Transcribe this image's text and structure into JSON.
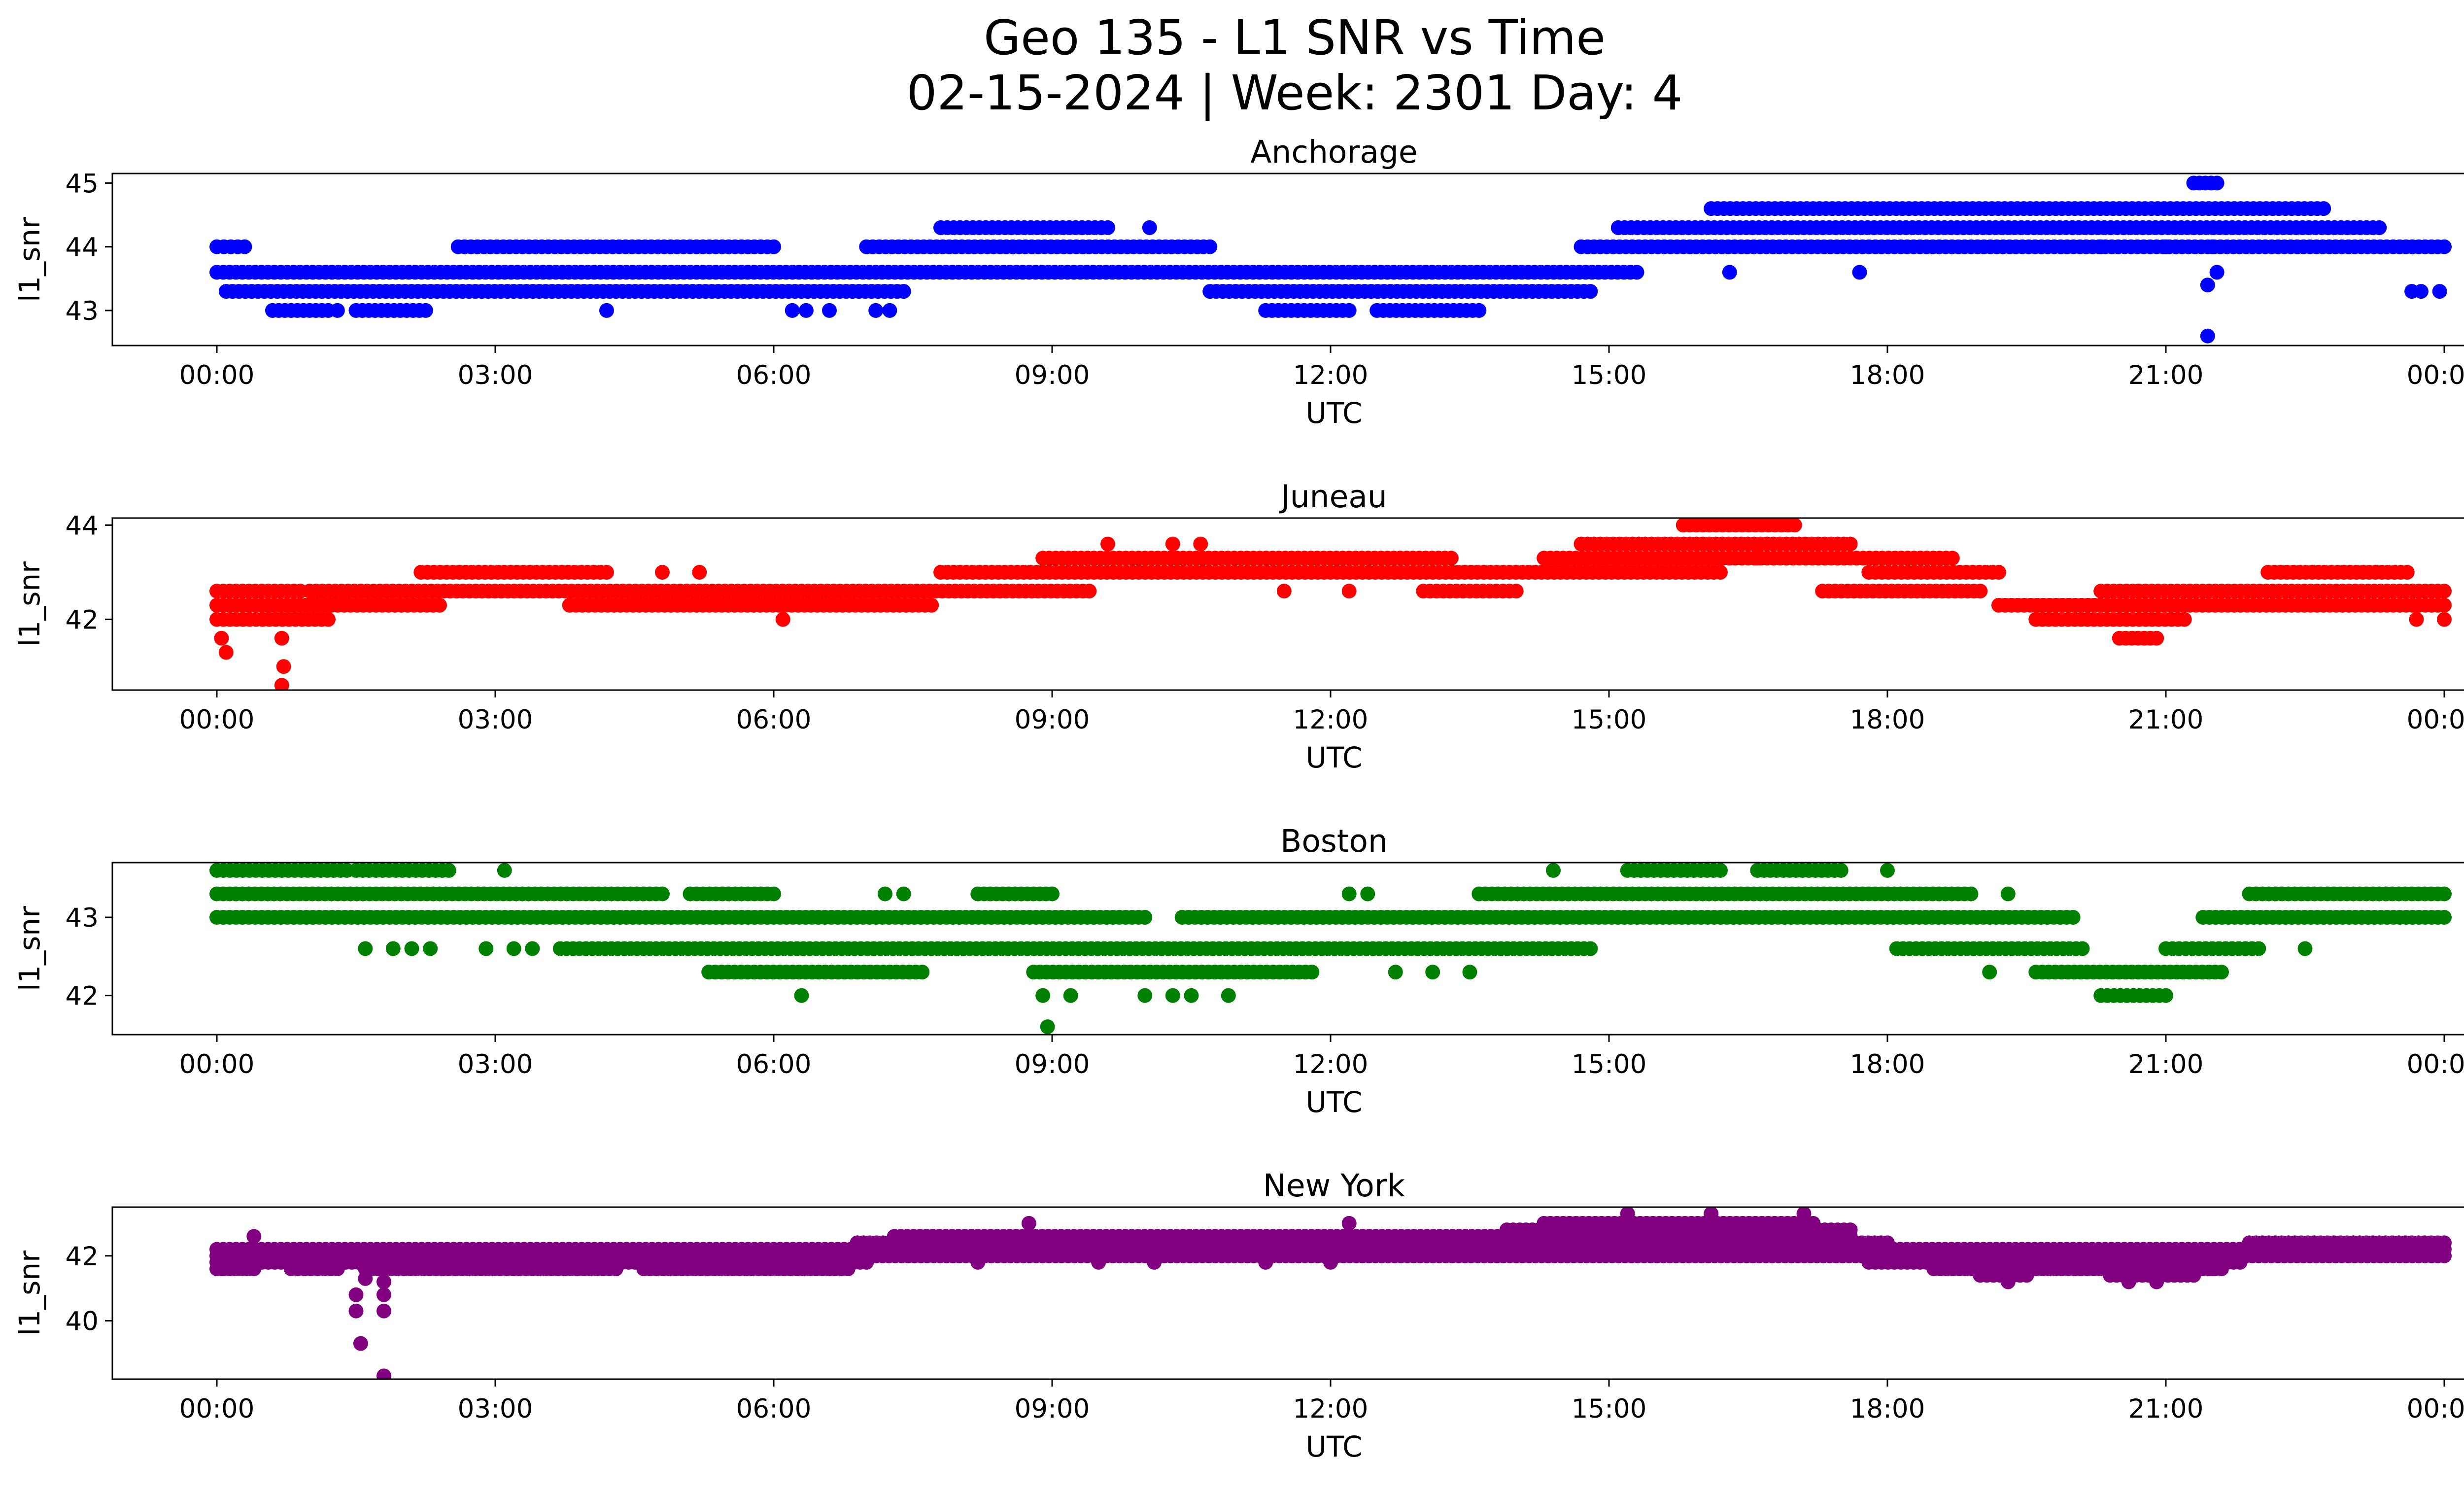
{
  "figure": {
    "title_line1": "Geo 135 - L1 SNR vs Time",
    "title_line2": "02-15-2024 | Week: 2301 Day: 4"
  },
  "chart_data": [
    {
      "type": "scatter",
      "title": "Anchorage",
      "xlabel": "UTC",
      "ylabel": "l1_snr",
      "color": "#0000ff",
      "x_range_hours": [
        0,
        24
      ],
      "xticks": [
        "00:00",
        "03:00",
        "06:00",
        "09:00",
        "12:00",
        "15:00",
        "18:00",
        "21:00",
        "00:00"
      ],
      "ylim": [
        42.45,
        45.15
      ],
      "yticks": [
        43,
        44,
        45
      ],
      "grid": false,
      "levels": [
        {
          "y": 43.6,
          "segments": [
            [
              0.0,
              15.3
            ]
          ]
        },
        {
          "y": 43.3,
          "segments": [
            [
              0.1,
              7.4
            ],
            [
              10.7,
              14.8
            ]
          ]
        },
        {
          "y": 43.0,
          "segments": [
            [
              0.6,
              1.2
            ],
            [
              1.5,
              2.25
            ],
            [
              11.3,
              12.2
            ],
            [
              12.5,
              13.6
            ]
          ]
        },
        {
          "y": 44.0,
          "segments": [
            [
              0.0,
              0.3
            ],
            [
              2.6,
              6.0
            ],
            [
              7.0,
              10.7
            ],
            [
              14.7,
              24.0
            ]
          ]
        },
        {
          "y": 44.3,
          "segments": [
            [
              7.8,
              9.6
            ],
            [
              15.1,
              23.3
            ]
          ]
        },
        {
          "y": 44.6,
          "segments": [
            [
              16.1,
              22.7
            ]
          ]
        },
        {
          "y": 45.0,
          "segments": [
            [
              21.3,
              21.55
            ]
          ]
        }
      ],
      "points": [
        {
          "x": 1.3,
          "y": 43.0
        },
        {
          "x": 4.2,
          "y": 43.0
        },
        {
          "x": 6.2,
          "y": 43.0
        },
        {
          "x": 6.35,
          "y": 43.0
        },
        {
          "x": 6.6,
          "y": 43.0
        },
        {
          "x": 7.1,
          "y": 43.0
        },
        {
          "x": 7.25,
          "y": 43.0
        },
        {
          "x": 10.05,
          "y": 44.3
        },
        {
          "x": 16.3,
          "y": 43.6
        },
        {
          "x": 17.7,
          "y": 43.6
        },
        {
          "x": 21.45,
          "y": 42.6
        },
        {
          "x": 21.45,
          "y": 43.4
        },
        {
          "x": 21.55,
          "y": 43.6
        },
        {
          "x": 23.65,
          "y": 43.3
        },
        {
          "x": 23.75,
          "y": 43.3
        },
        {
          "x": 23.95,
          "y": 43.3
        },
        {
          "x": 21.5,
          "y": 44.0
        },
        {
          "x": 21.0,
          "y": 44.0
        },
        {
          "x": 20.3,
          "y": 44.0
        }
      ]
    },
    {
      "type": "scatter",
      "title": "Juneau",
      "xlabel": "UTC",
      "ylabel": "l1_snr",
      "color": "#ff0000",
      "x_range_hours": [
        0,
        24
      ],
      "xticks": [
        "00:00",
        "03:00",
        "06:00",
        "09:00",
        "12:00",
        "15:00",
        "18:00",
        "21:00",
        "00:00"
      ],
      "ylim": [
        40.5,
        44.15
      ],
      "yticks": [
        42,
        44
      ],
      "grid": false,
      "levels": [
        {
          "y": 42.6,
          "segments": [
            [
              0.0,
              0.9
            ],
            [
              1.0,
              9.4
            ],
            [
              13.0,
              14.0
            ],
            [
              17.3,
              19.0
            ],
            [
              20.3,
              24.0
            ]
          ]
        },
        {
          "y": 42.3,
          "segments": [
            [
              0.0,
              2.4
            ],
            [
              3.8,
              7.7
            ],
            [
              19.2,
              24.0
            ]
          ]
        },
        {
          "y": 42.0,
          "segments": [
            [
              0.0,
              1.2
            ],
            [
              19.6,
              21.2
            ]
          ]
        },
        {
          "y": 43.0,
          "segments": [
            [
              2.2,
              4.2
            ],
            [
              7.8,
              16.2
            ],
            [
              17.8,
              19.2
            ],
            [
              22.1,
              23.6
            ]
          ]
        },
        {
          "y": 43.3,
          "segments": [
            [
              8.9,
              13.3
            ],
            [
              14.3,
              18.7
            ]
          ]
        },
        {
          "y": 43.6,
          "segments": [
            [
              14.7,
              17.6
            ]
          ]
        },
        {
          "y": 44.0,
          "segments": [
            [
              15.8,
              17.0
            ]
          ]
        },
        {
          "y": 41.6,
          "segments": [
            [
              20.5,
              20.9
            ]
          ]
        }
      ],
      "points": [
        {
          "x": 0.05,
          "y": 41.6
        },
        {
          "x": 0.1,
          "y": 41.3
        },
        {
          "x": 0.7,
          "y": 41.6
        },
        {
          "x": 0.72,
          "y": 41.0
        },
        {
          "x": 0.7,
          "y": 40.6
        },
        {
          "x": 4.8,
          "y": 43.0
        },
        {
          "x": 5.2,
          "y": 43.0
        },
        {
          "x": 6.1,
          "y": 42.0
        },
        {
          "x": 9.6,
          "y": 43.6
        },
        {
          "x": 10.3,
          "y": 43.6
        },
        {
          "x": 10.6,
          "y": 43.6
        },
        {
          "x": 11.5,
          "y": 42.6
        },
        {
          "x": 12.2,
          "y": 42.6
        },
        {
          "x": 20.7,
          "y": 42.6
        },
        {
          "x": 23.7,
          "y": 42.0
        },
        {
          "x": 24.0,
          "y": 42.0
        },
        {
          "x": 16.6,
          "y": 43.3
        },
        {
          "x": 16.3,
          "y": 43.3
        }
      ]
    },
    {
      "type": "scatter",
      "title": "Boston",
      "xlabel": "UTC",
      "ylabel": "l1_snr",
      "color": "#008000",
      "x_range_hours": [
        0,
        24
      ],
      "xticks": [
        "00:00",
        "03:00",
        "06:00",
        "09:00",
        "12:00",
        "15:00",
        "18:00",
        "21:00",
        "00:00"
      ],
      "ylim": [
        41.5,
        43.7
      ],
      "yticks": [
        42,
        43
      ],
      "grid": false,
      "levels": [
        {
          "y": 43.0,
          "segments": [
            [
              0.0,
              10.0
            ],
            [
              10.4,
              20.0
            ],
            [
              21.4,
              24.0
            ]
          ]
        },
        {
          "y": 43.3,
          "segments": [
            [
              0.0,
              4.8
            ],
            [
              5.1,
              6.0
            ],
            [
              8.2,
              9.0
            ],
            [
              13.6,
              18.9
            ],
            [
              21.9,
              24.0
            ]
          ]
        },
        {
          "y": 43.6,
          "segments": [
            [
              0.0,
              1.4
            ],
            [
              1.5,
              2.5
            ],
            [
              15.2,
              16.2
            ],
            [
              16.6,
              17.5
            ]
          ]
        },
        {
          "y": 42.6,
          "segments": [
            [
              3.7,
              14.8
            ],
            [
              18.1,
              20.1
            ],
            [
              21.0,
              22.0
            ]
          ]
        },
        {
          "y": 42.3,
          "segments": [
            [
              5.3,
              7.6
            ],
            [
              8.8,
              11.8
            ],
            [
              19.6,
              21.6
            ]
          ]
        },
        {
          "y": 42.0,
          "segments": [
            [
              20.3,
              21.0
            ]
          ]
        }
      ],
      "points": [
        {
          "x": 1.6,
          "y": 42.6
        },
        {
          "x": 1.9,
          "y": 42.6
        },
        {
          "x": 2.1,
          "y": 42.6
        },
        {
          "x": 2.3,
          "y": 42.6
        },
        {
          "x": 2.9,
          "y": 42.6
        },
        {
          "x": 3.2,
          "y": 42.6
        },
        {
          "x": 3.4,
          "y": 42.6
        },
        {
          "x": 3.1,
          "y": 43.6
        },
        {
          "x": 6.3,
          "y": 42.0
        },
        {
          "x": 8.95,
          "y": 41.6
        },
        {
          "x": 8.9,
          "y": 42.0
        },
        {
          "x": 9.2,
          "y": 42.0
        },
        {
          "x": 10.0,
          "y": 42.0
        },
        {
          "x": 10.3,
          "y": 42.0
        },
        {
          "x": 10.5,
          "y": 42.0
        },
        {
          "x": 10.9,
          "y": 42.0
        },
        {
          "x": 14.4,
          "y": 43.6
        },
        {
          "x": 18.0,
          "y": 43.6
        },
        {
          "x": 19.3,
          "y": 43.3
        },
        {
          "x": 19.1,
          "y": 42.3
        },
        {
          "x": 22.5,
          "y": 42.6
        },
        {
          "x": 12.2,
          "y": 43.3
        },
        {
          "x": 12.4,
          "y": 43.3
        },
        {
          "x": 7.2,
          "y": 43.3
        },
        {
          "x": 7.4,
          "y": 43.3
        },
        {
          "x": 12.7,
          "y": 42.3
        },
        {
          "x": 13.1,
          "y": 42.3
        },
        {
          "x": 13.5,
          "y": 42.3
        }
      ]
    },
    {
      "type": "scatter",
      "title": "New York",
      "xlabel": "UTC",
      "ylabel": "l1_snr",
      "color": "#800080",
      "x_range_hours": [
        0,
        24
      ],
      "xticks": [
        "00:00",
        "03:00",
        "06:00",
        "09:00",
        "12:00",
        "15:00",
        "18:00",
        "21:00",
        "00:00"
      ],
      "ylim": [
        38.2,
        43.5
      ],
      "yticks": [
        40,
        42
      ],
      "grid": false,
      "levels": [
        {
          "y": 42.0,
          "segments": [
            [
              0.0,
              24.0
            ]
          ]
        },
        {
          "y": 42.2,
          "segments": [
            [
              0.0,
              24.0
            ]
          ]
        },
        {
          "y": 41.8,
          "segments": [
            [
              0.0,
              7.0
            ],
            [
              17.8,
              21.8
            ]
          ]
        },
        {
          "y": 41.6,
          "segments": [
            [
              0.0,
              0.4
            ],
            [
              0.8,
              1.3
            ],
            [
              1.6,
              4.3
            ],
            [
              4.6,
              6.8
            ],
            [
              18.5,
              21.6
            ]
          ]
        },
        {
          "y": 42.4,
          "segments": [
            [
              6.9,
              18.0
            ],
            [
              21.9,
              24.0
            ]
          ]
        },
        {
          "y": 42.6,
          "segments": [
            [
              7.3,
              17.6
            ]
          ]
        },
        {
          "y": 42.8,
          "segments": [
            [
              13.9,
              17.6
            ]
          ]
        },
        {
          "y": 43.0,
          "segments": [
            [
              14.3,
              17.2
            ]
          ]
        },
        {
          "y": 41.4,
          "segments": [
            [
              19.0,
              19.5
            ],
            [
              20.4,
              21.3
            ]
          ]
        }
      ],
      "points": [
        {
          "x": 1.5,
          "y": 40.8
        },
        {
          "x": 1.5,
          "y": 40.3
        },
        {
          "x": 1.55,
          "y": 39.3
        },
        {
          "x": 1.8,
          "y": 40.8
        },
        {
          "x": 1.8,
          "y": 40.3
        },
        {
          "x": 1.8,
          "y": 38.3
        },
        {
          "x": 1.6,
          "y": 41.3
        },
        {
          "x": 1.8,
          "y": 41.2
        },
        {
          "x": 0.05,
          "y": 41.6
        },
        {
          "x": 8.75,
          "y": 43.0
        },
        {
          "x": 12.2,
          "y": 43.0
        },
        {
          "x": 15.2,
          "y": 43.3
        },
        {
          "x": 16.1,
          "y": 43.3
        },
        {
          "x": 17.1,
          "y": 43.3
        },
        {
          "x": 19.3,
          "y": 41.2
        },
        {
          "x": 20.9,
          "y": 41.2
        },
        {
          "x": 20.6,
          "y": 41.2
        },
        {
          "x": 21.5,
          "y": 41.6
        },
        {
          "x": 8.2,
          "y": 41.8
        },
        {
          "x": 9.5,
          "y": 41.8
        },
        {
          "x": 10.1,
          "y": 41.8
        },
        {
          "x": 11.3,
          "y": 41.8
        },
        {
          "x": 12.0,
          "y": 41.8
        },
        {
          "x": 16.5,
          "y": 42.4
        },
        {
          "x": 14.8,
          "y": 42.4
        },
        {
          "x": 0.4,
          "y": 42.6
        }
      ]
    }
  ]
}
